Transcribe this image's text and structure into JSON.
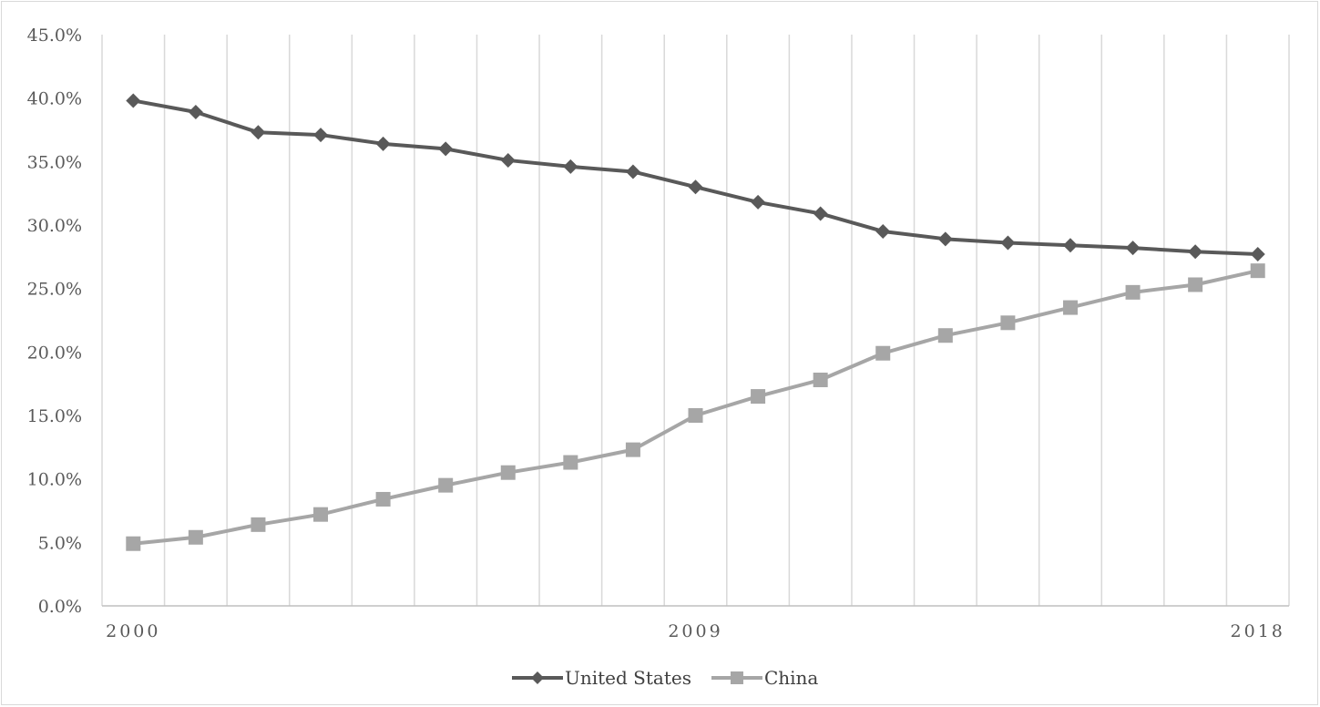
{
  "chart_data": {
    "type": "line",
    "title": "",
    "xlabel": "",
    "ylabel": "",
    "x": [
      2000,
      2001,
      2002,
      2003,
      2004,
      2005,
      2006,
      2007,
      2008,
      2009,
      2010,
      2011,
      2012,
      2013,
      2014,
      2015,
      2016,
      2017,
      2018
    ],
    "x_tick_labels": [
      {
        "value": 2000,
        "label": "2000"
      },
      {
        "value": 2009,
        "label": "2009"
      },
      {
        "value": 2018,
        "label": "2018"
      }
    ],
    "ylim": [
      0,
      45
    ],
    "y_ticks": [
      0,
      5,
      10,
      15,
      20,
      25,
      30,
      35,
      40,
      45
    ],
    "y_tick_format": "percent_one_decimal",
    "grid": "vertical",
    "legend": "bottom-center",
    "series": [
      {
        "name": "United States",
        "marker": "diamond",
        "color": "#595959",
        "values": [
          39.8,
          38.9,
          37.3,
          37.1,
          36.4,
          36.0,
          35.1,
          34.6,
          34.2,
          33.0,
          31.8,
          30.9,
          29.5,
          28.9,
          28.6,
          28.4,
          28.2,
          27.9,
          27.7
        ]
      },
      {
        "name": "China",
        "marker": "square",
        "color": "#a6a6a6",
        "values": [
          4.9,
          5.4,
          6.4,
          7.2,
          8.4,
          9.5,
          10.5,
          11.3,
          12.3,
          15.0,
          16.5,
          17.8,
          19.9,
          21.3,
          22.3,
          23.5,
          24.7,
          25.3,
          26.4
        ]
      }
    ]
  }
}
